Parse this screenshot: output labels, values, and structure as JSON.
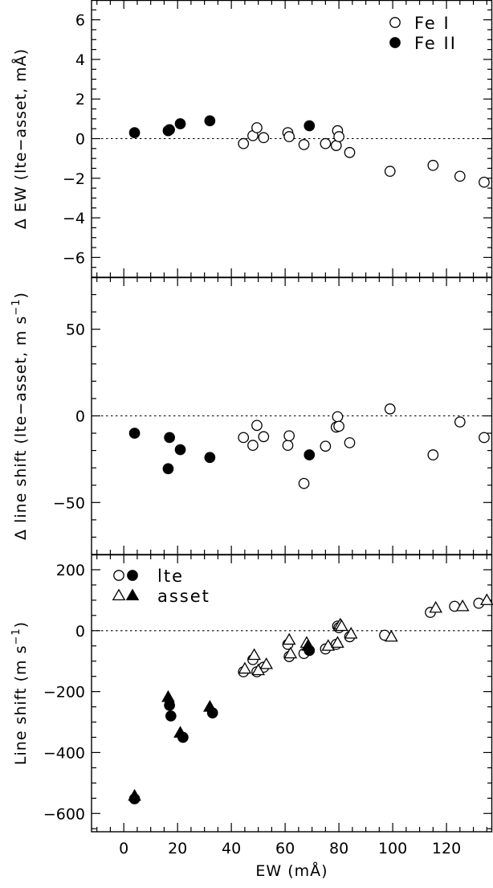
{
  "chart_data": [
    {
      "type": "scatter",
      "xlabel": "",
      "ylabel_prefix": "Δ",
      "ylabel": "EW (lte−asset, mÅ)",
      "xlim": [
        -12,
        137
      ],
      "ylim": [
        -7,
        7
      ],
      "yticks": [
        -6,
        -4,
        -2,
        0,
        2,
        4,
        6
      ],
      "reference_line": 0,
      "legend_position": "top-right",
      "series": [
        {
          "name": "Fe I",
          "marker": "open-circle",
          "points": [
            [
              44.5,
              -0.25
            ],
            [
              48,
              0.15
            ],
            [
              49.5,
              0.55
            ],
            [
              52,
              0.05
            ],
            [
              61,
              0.3
            ],
            [
              61.5,
              0.1
            ],
            [
              67,
              -0.3
            ],
            [
              75,
              -0.25
            ],
            [
              79,
              -0.35
            ],
            [
              79.5,
              0.4
            ],
            [
              80,
              0.1
            ],
            [
              84,
              -0.7
            ],
            [
              99,
              -1.65
            ],
            [
              115,
              -1.35
            ],
            [
              125,
              -1.9
            ],
            [
              134,
              -2.2
            ]
          ]
        },
        {
          "name": "Fe II",
          "marker": "filled-circle",
          "points": [
            [
              4,
              0.3
            ],
            [
              16.5,
              0.4
            ],
            [
              17,
              0.45
            ],
            [
              21,
              0.75
            ],
            [
              32,
              0.9
            ],
            [
              69,
              0.65
            ]
          ]
        }
      ]
    },
    {
      "type": "scatter",
      "xlabel": "",
      "ylabel_prefix": "Δ",
      "ylabel": "line shift (lte−asset, m s",
      "ylabel_sup": "−1",
      "ylabel_end": ")",
      "xlim": [
        -12,
        137
      ],
      "ylim": [
        -80,
        80
      ],
      "yticks": [
        -50,
        0,
        50
      ],
      "reference_line": 0,
      "series": [
        {
          "marker": "open-circle",
          "points": [
            [
              44.5,
              -12.5
            ],
            [
              48,
              -17
            ],
            [
              49.5,
              -5.5
            ],
            [
              52,
              -12
            ],
            [
              61,
              -17
            ],
            [
              61.5,
              -11.5
            ],
            [
              67,
              -39
            ],
            [
              75,
              -17.5
            ],
            [
              79,
              -6.5
            ],
            [
              79.5,
              -0.5
            ],
            [
              80,
              -6
            ],
            [
              84,
              -15.5
            ],
            [
              99,
              4
            ],
            [
              115,
              -22.5
            ],
            [
              125,
              -3.5
            ],
            [
              134,
              -12.5
            ]
          ]
        },
        {
          "marker": "filled-circle",
          "points": [
            [
              4,
              -10
            ],
            [
              16.5,
              -30.5
            ],
            [
              17,
              -12.5
            ],
            [
              21,
              -19.5
            ],
            [
              32,
              -24
            ],
            [
              69,
              -22.5
            ]
          ]
        }
      ]
    },
    {
      "type": "scatter",
      "xlabel": "EW (mÅ)",
      "ylabel": "Line shift (m s",
      "ylabel_sup": "−1",
      "ylabel_end": ")",
      "xlim": [
        -12,
        137
      ],
      "ylim": [
        -660,
        250
      ],
      "xticks": [
        0,
        20,
        40,
        60,
        80,
        100,
        120
      ],
      "yticks": [
        -600,
        -400,
        -200,
        0,
        200
      ],
      "reference_line": 0,
      "legend_position": "top-left",
      "legend": [
        {
          "name": "lte",
          "markers": [
            "open-circle",
            "filled-circle"
          ]
        },
        {
          "name": "asset",
          "markers": [
            "open-triangle",
            "filled-triangle"
          ]
        }
      ],
      "series": [
        {
          "name": "lte",
          "marker": "open-circle",
          "points": [
            [
              44.5,
              -135
            ],
            [
              48,
              -95
            ],
            [
              49.5,
              -135
            ],
            [
              52,
              -120
            ],
            [
              61,
              -45
            ],
            [
              61.5,
              -85
            ],
            [
              67,
              -75
            ],
            [
              75,
              -60
            ],
            [
              79,
              -45
            ],
            [
              79.5,
              15
            ],
            [
              80,
              10
            ],
            [
              84,
              -20
            ],
            [
              97,
              -15
            ],
            [
              114,
              60
            ],
            [
              123,
              80
            ],
            [
              132,
              90
            ]
          ]
        },
        {
          "name": "lte",
          "marker": "filled-circle",
          "points": [
            [
              4,
              -552
            ],
            [
              17,
              -245
            ],
            [
              17.5,
              -280
            ],
            [
              22,
              -350
            ],
            [
              33,
              -270
            ],
            [
              69,
              -65
            ]
          ]
        },
        {
          "name": "asset",
          "marker": "open-triangle",
          "points": [
            [
              45,
              -125
            ],
            [
              48.5,
              -80
            ],
            [
              50,
              -130
            ],
            [
              53,
              -110
            ],
            [
              61.5,
              -30
            ],
            [
              62,
              -75
            ],
            [
              68,
              -40
            ],
            [
              76,
              -50
            ],
            [
              79.5,
              -40
            ],
            [
              80.5,
              20
            ],
            [
              81,
              15
            ],
            [
              84.5,
              -10
            ],
            [
              99.5,
              -20
            ],
            [
              116,
              75
            ],
            [
              126,
              80
            ],
            [
              135,
              100
            ]
          ]
        },
        {
          "name": "asset",
          "marker": "filled-triangle",
          "points": [
            [
              4,
              -542
            ],
            [
              16.5,
              -218
            ],
            [
              21,
              -335
            ],
            [
              32,
              -250
            ],
            [
              68.5,
              -50
            ]
          ]
        }
      ]
    }
  ]
}
